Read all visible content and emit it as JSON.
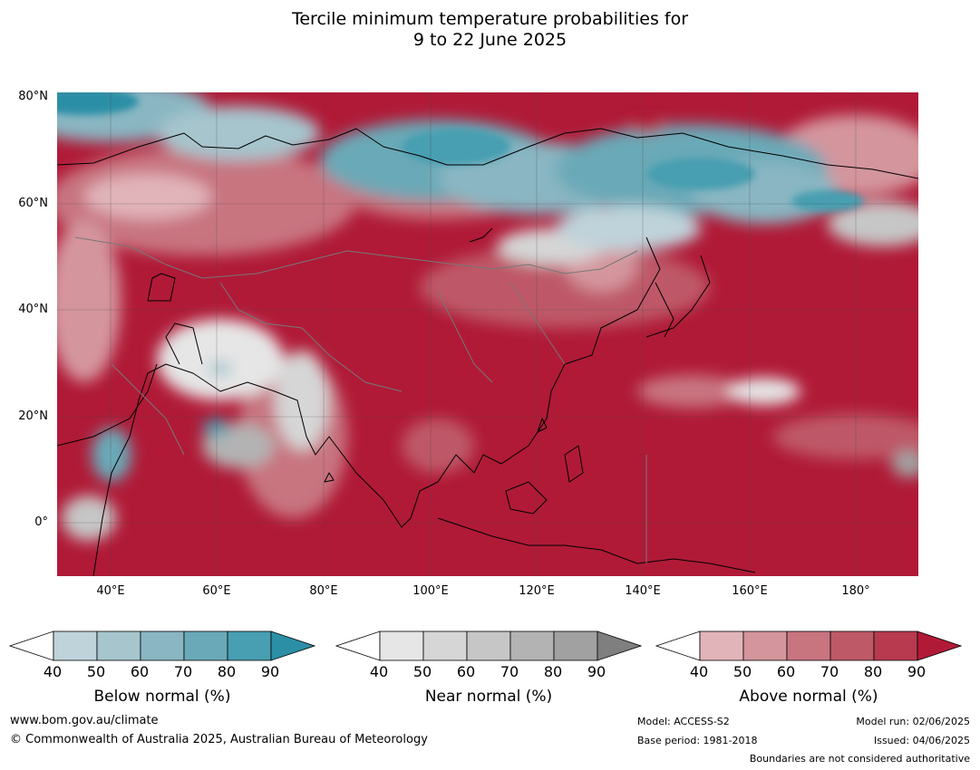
{
  "title_line1": "Tercile minimum temperature probabilities for",
  "title_line2": "9 to 22 June 2025",
  "map": {
    "lat_labels": [
      "80°N",
      "60°N",
      "40°N",
      "20°N",
      "0°"
    ],
    "lon_labels": [
      "40°E",
      "60°E",
      "80°E",
      "100°E",
      "120°E",
      "140°E",
      "160°E",
      "180°"
    ]
  },
  "legend": {
    "ticks": [
      "40",
      "50",
      "60",
      "70",
      "80",
      "90"
    ],
    "below": {
      "title": "Below normal (%)",
      "colors": [
        "#ffffff",
        "#bfd3da",
        "#a6c5cd",
        "#89b6c2",
        "#6aa9b7",
        "#479fb1",
        "#2b8fa6"
      ]
    },
    "near": {
      "title": "Near normal (%)",
      "colors": [
        "#ffffff",
        "#e6e6e6",
        "#d6d6d6",
        "#c6c6c6",
        "#b3b3b3",
        "#a1a1a1",
        "#7f7f7f"
      ]
    },
    "above": {
      "title": "Above normal (%)",
      "colors": [
        "#ffffff",
        "#e1b4ba",
        "#d4959d",
        "#c87580",
        "#be5968",
        "#b73a4f",
        "#b01a37"
      ]
    }
  },
  "footer": {
    "url": "www.bom.gov.au/climate",
    "copyright": "© Commonwealth of Australia 2025, Australian Bureau of Meteorology",
    "model": "Model: ACCESS-S2",
    "base_period": "Base period: 1981-2018",
    "model_run": "Model run: 02/06/2025",
    "issued": "Issued: 04/06/2025",
    "boundaries": "Boundaries are not considered authoritative"
  }
}
